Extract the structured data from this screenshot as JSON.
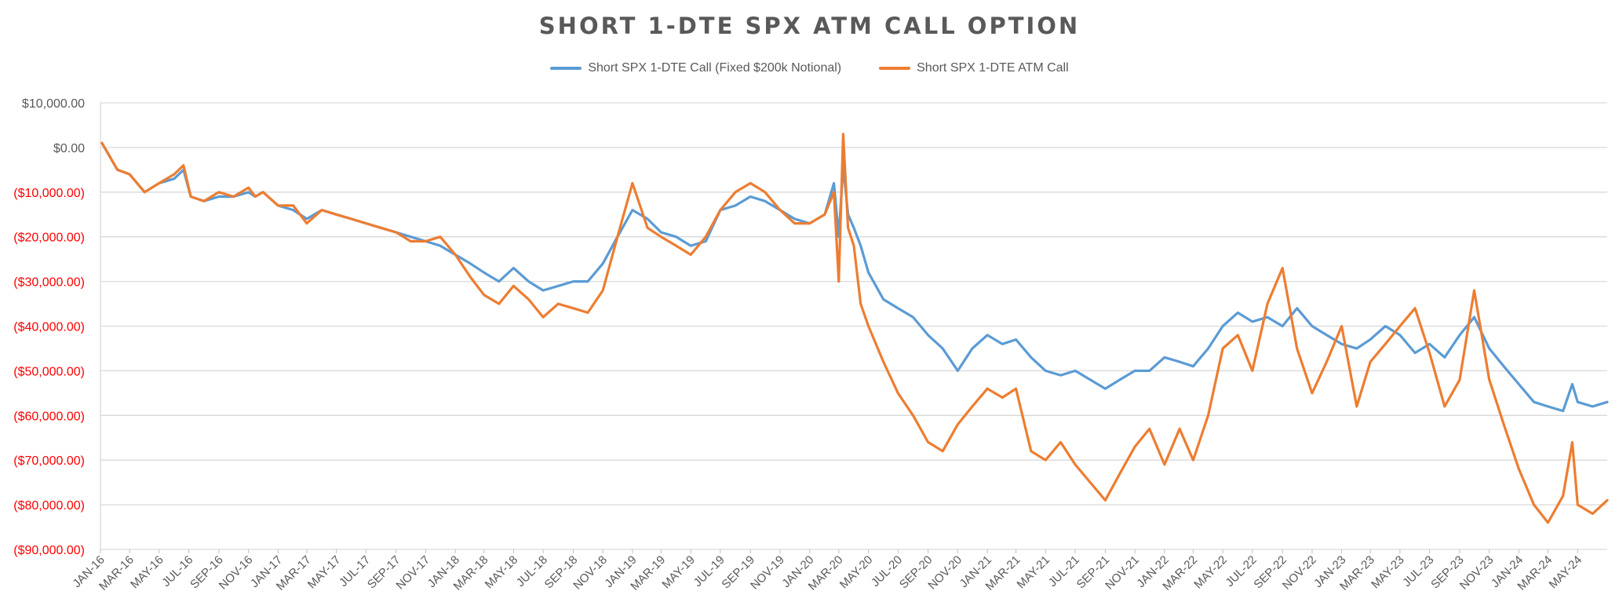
{
  "chart_data": {
    "type": "line",
    "title": "SHORT 1-DTE SPX ATM CALL OPTION",
    "xlabel": "",
    "ylabel": "",
    "ylim": [
      -90000,
      10000
    ],
    "yticks": [
      10000,
      0,
      -10000,
      -20000,
      -30000,
      -40000,
      -50000,
      -60000,
      -70000,
      -80000,
      -90000
    ],
    "ytick_labels": [
      "$10,000.00",
      "$0.00",
      "($10,000.00)",
      "($20,000.00)",
      "($30,000.00)",
      "($40,000.00)",
      "($50,000.00)",
      "($60,000.00)",
      "($70,000.00)",
      "($80,000.00)",
      "($90,000.00)"
    ],
    "negative_label_color": "#ff0000",
    "positive_label_color": "#595959",
    "xrange": [
      "2016-01",
      "2024-07"
    ],
    "xticks": [
      "2016-01",
      "2016-03",
      "2016-05",
      "2016-07",
      "2016-09",
      "2016-11",
      "2017-01",
      "2017-03",
      "2017-05",
      "2017-07",
      "2017-09",
      "2017-11",
      "2018-01",
      "2018-03",
      "2018-05",
      "2018-07",
      "2018-09",
      "2018-11",
      "2019-01",
      "2019-03",
      "2019-05",
      "2019-07",
      "2019-09",
      "2019-11",
      "2020-01",
      "2020-03",
      "2020-05",
      "2020-07",
      "2020-09",
      "2020-11",
      "2021-01",
      "2021-03",
      "2021-05",
      "2021-07",
      "2021-09",
      "2021-11",
      "2022-01",
      "2022-03",
      "2022-05",
      "2022-07",
      "2022-09",
      "2022-11",
      "2023-01",
      "2023-03",
      "2023-05",
      "2023-07",
      "2023-09",
      "2023-11",
      "2024-01",
      "2024-03",
      "2024-05"
    ],
    "xtick_labels": [
      "JAN-16",
      "MAR-16",
      "MAY-16",
      "JUL-16",
      "SEP-16",
      "NOV-16",
      "JAN-17",
      "MAR-17",
      "MAY-17",
      "JUL-17",
      "SEP-17",
      "NOV-17",
      "JAN-18",
      "MAR-18",
      "MAY-18",
      "JUL-18",
      "SEP-18",
      "NOV-18",
      "JAN-19",
      "MAR-19",
      "MAY-19",
      "JUL-19",
      "SEP-19",
      "NOV-19",
      "JAN-20",
      "MAR-20",
      "MAY-20",
      "JUL-20",
      "SEP-20",
      "NOV-20",
      "JAN-21",
      "MAR-21",
      "MAY-21",
      "JUL-21",
      "SEP-21",
      "NOV-21",
      "JAN-22",
      "MAR-22",
      "MAY-22",
      "JUL-22",
      "SEP-22",
      "NOV-22",
      "JAN-23",
      "MAR-23",
      "MAY-23",
      "JUL-23",
      "SEP-23",
      "NOV-23",
      "JAN-24",
      "MAR-24",
      "MAY-24"
    ],
    "grid": true,
    "legend_position": "top",
    "series": [
      {
        "name": "Short SPX 1-DTE Call (Fixed $200k Notional)",
        "color": "#5b9bd5",
        "x": [
          "2016-01-04",
          "2016-01-20",
          "2016-02-05",
          "2016-03-01",
          "2016-04-01",
          "2016-05-01",
          "2016-06-01",
          "2016-06-20",
          "2016-07-05",
          "2016-08-01",
          "2016-09-01",
          "2016-10-01",
          "2016-11-01",
          "2016-11-15",
          "2016-12-01",
          "2017-01-01",
          "2017-02-01",
          "2017-03-01",
          "2017-04-01",
          "2017-05-01",
          "2017-06-01",
          "2017-07-01",
          "2017-08-01",
          "2017-09-01",
          "2017-10-01",
          "2017-11-01",
          "2017-12-01",
          "2018-01-01",
          "2018-02-01",
          "2018-03-01",
          "2018-04-01",
          "2018-05-01",
          "2018-06-01",
          "2018-07-01",
          "2018-08-01",
          "2018-09-01",
          "2018-10-01",
          "2018-11-01",
          "2018-12-01",
          "2019-01-01",
          "2019-02-01",
          "2019-03-01",
          "2019-04-01",
          "2019-05-01",
          "2019-06-01",
          "2019-07-01",
          "2019-08-01",
          "2019-09-01",
          "2019-10-01",
          "2019-11-01",
          "2019-12-01",
          "2020-01-01",
          "2020-02-01",
          "2020-02-20",
          "2020-03-01",
          "2020-03-10",
          "2020-03-20",
          "2020-04-01",
          "2020-04-15",
          "2020-05-01",
          "2020-06-01",
          "2020-07-01",
          "2020-08-01",
          "2020-09-01",
          "2020-10-01",
          "2020-11-01",
          "2020-12-01",
          "2021-01-01",
          "2021-02-01",
          "2021-03-01",
          "2021-04-01",
          "2021-05-01",
          "2021-06-01",
          "2021-07-01",
          "2021-08-01",
          "2021-09-01",
          "2021-10-01",
          "2021-11-01",
          "2021-12-01",
          "2022-01-01",
          "2022-02-01",
          "2022-03-01",
          "2022-04-01",
          "2022-05-01",
          "2022-06-01",
          "2022-07-01",
          "2022-08-01",
          "2022-09-01",
          "2022-10-01",
          "2022-11-01",
          "2022-12-01",
          "2023-01-01",
          "2023-02-01",
          "2023-03-01",
          "2023-04-01",
          "2023-05-01",
          "2023-06-01",
          "2023-07-01",
          "2023-08-01",
          "2023-09-01",
          "2023-10-01",
          "2023-11-01",
          "2023-12-01",
          "2024-01-01",
          "2024-02-01",
          "2024-03-01",
          "2024-04-01",
          "2024-04-20",
          "2024-05-01",
          "2024-06-01",
          "2024-07-01"
        ],
        "values": [
          1000,
          -2000,
          -5000,
          -6000,
          -10000,
          -8000,
          -7000,
          -5000,
          -11000,
          -12000,
          -11000,
          -11000,
          -10000,
          -11000,
          -10000,
          -13000,
          -14000,
          -16000,
          -14000,
          -15000,
          -16000,
          -17000,
          -18000,
          -19000,
          -20000,
          -21000,
          -22000,
          -24000,
          -26000,
          -28000,
          -30000,
          -27000,
          -30000,
          -32000,
          -31000,
          -30000,
          -30000,
          -26000,
          -20000,
          -14000,
          -16000,
          -19000,
          -20000,
          -22000,
          -21000,
          -14000,
          -13000,
          -11000,
          -12000,
          -14000,
          -16000,
          -17000,
          -15000,
          -8000,
          -20000,
          -4000,
          -15000,
          -18000,
          -22000,
          -28000,
          -34000,
          -36000,
          -38000,
          -42000,
          -45000,
          -50000,
          -45000,
          -42000,
          -44000,
          -43000,
          -47000,
          -50000,
          -51000,
          -50000,
          -52000,
          -54000,
          -52000,
          -50000,
          -50000,
          -47000,
          -48000,
          -49000,
          -45000,
          -40000,
          -37000,
          -39000,
          -38000,
          -40000,
          -36000,
          -40000,
          -42000,
          -44000,
          -45000,
          -43000,
          -40000,
          -42000,
          -46000,
          -44000,
          -47000,
          -42000,
          -38000,
          -45000,
          -49000,
          -53000,
          -57000,
          -58000,
          -59000,
          -53000,
          -57000,
          -58000,
          -57000
        ]
      },
      {
        "name": "Short SPX 1-DTE ATM Call",
        "color": "#ed7d31",
        "x": [
          "2016-01-04",
          "2016-01-20",
          "2016-02-05",
          "2016-03-01",
          "2016-04-01",
          "2016-05-01",
          "2016-06-01",
          "2016-06-20",
          "2016-07-05",
          "2016-08-01",
          "2016-09-01",
          "2016-10-01",
          "2016-11-01",
          "2016-11-15",
          "2016-12-01",
          "2017-01-01",
          "2017-02-01",
          "2017-03-01",
          "2017-04-01",
          "2017-05-01",
          "2017-06-01",
          "2017-07-01",
          "2017-08-01",
          "2017-09-01",
          "2017-10-01",
          "2017-11-01",
          "2017-12-01",
          "2018-01-01",
          "2018-02-01",
          "2018-03-01",
          "2018-04-01",
          "2018-05-01",
          "2018-06-01",
          "2018-07-01",
          "2018-08-01",
          "2018-09-01",
          "2018-10-01",
          "2018-11-01",
          "2018-12-01",
          "2019-01-01",
          "2019-02-01",
          "2019-03-01",
          "2019-04-01",
          "2019-05-01",
          "2019-06-01",
          "2019-07-01",
          "2019-08-01",
          "2019-09-01",
          "2019-10-01",
          "2019-11-01",
          "2019-12-01",
          "2020-01-01",
          "2020-02-01",
          "2020-02-20",
          "2020-03-01",
          "2020-03-10",
          "2020-03-20",
          "2020-04-01",
          "2020-04-15",
          "2020-05-01",
          "2020-06-01",
          "2020-07-01",
          "2020-08-01",
          "2020-09-01",
          "2020-10-01",
          "2020-11-01",
          "2020-12-01",
          "2021-01-01",
          "2021-02-01",
          "2021-03-01",
          "2021-04-01",
          "2021-05-01",
          "2021-06-01",
          "2021-07-01",
          "2021-08-01",
          "2021-09-01",
          "2021-10-01",
          "2021-11-01",
          "2021-12-01",
          "2022-01-01",
          "2022-02-01",
          "2022-03-01",
          "2022-04-01",
          "2022-05-01",
          "2022-06-01",
          "2022-07-01",
          "2022-08-01",
          "2022-09-01",
          "2022-10-01",
          "2022-11-01",
          "2022-12-01",
          "2023-01-01",
          "2023-02-01",
          "2023-03-01",
          "2023-04-01",
          "2023-05-01",
          "2023-06-01",
          "2023-07-01",
          "2023-08-01",
          "2023-09-01",
          "2023-10-01",
          "2023-11-01",
          "2023-12-01",
          "2024-01-01",
          "2024-02-01",
          "2024-03-01",
          "2024-04-01",
          "2024-04-20",
          "2024-05-01",
          "2024-06-01",
          "2024-07-01"
        ],
        "values": [
          1000,
          -2000,
          -5000,
          -6000,
          -10000,
          -8000,
          -6000,
          -4000,
          -11000,
          -12000,
          -10000,
          -11000,
          -9000,
          -11000,
          -10000,
          -13000,
          -13000,
          -17000,
          -14000,
          -15000,
          -16000,
          -17000,
          -18000,
          -19000,
          -21000,
          -21000,
          -20000,
          -24000,
          -29000,
          -33000,
          -35000,
          -31000,
          -34000,
          -38000,
          -35000,
          -36000,
          -37000,
          -32000,
          -20000,
          -8000,
          -18000,
          -20000,
          -22000,
          -24000,
          -20000,
          -14000,
          -10000,
          -8000,
          -10000,
          -14000,
          -17000,
          -17000,
          -15000,
          -10000,
          -30000,
          3000,
          -18000,
          -22000,
          -35000,
          -40000,
          -48000,
          -55000,
          -60000,
          -66000,
          -68000,
          -62000,
          -58000,
          -54000,
          -56000,
          -54000,
          -68000,
          -70000,
          -66000,
          -71000,
          -75000,
          -79000,
          -73000,
          -67000,
          -63000,
          -71000,
          -63000,
          -70000,
          -60000,
          -45000,
          -42000,
          -50000,
          -35000,
          -27000,
          -45000,
          -55000,
          -48000,
          -40000,
          -58000,
          -48000,
          -44000,
          -40000,
          -36000,
          -46000,
          -58000,
          -52000,
          -32000,
          -52000,
          -62000,
          -72000,
          -80000,
          -84000,
          -78000,
          -66000,
          -80000,
          -82000,
          -79000
        ]
      }
    ]
  }
}
